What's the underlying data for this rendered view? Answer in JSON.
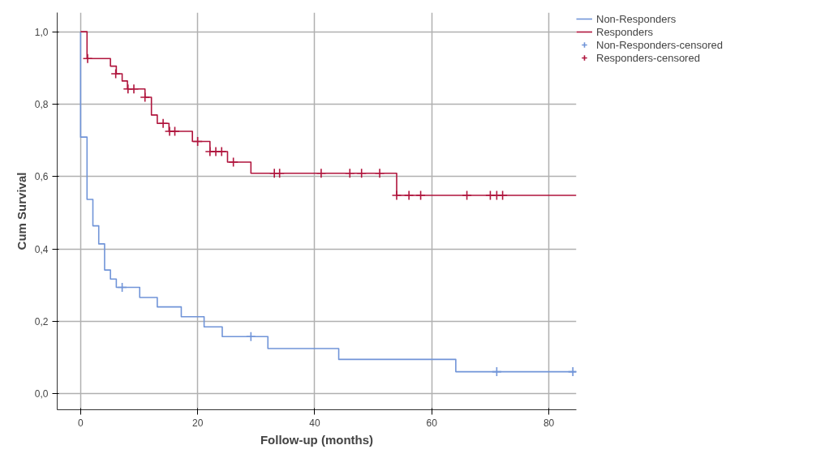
{
  "chart_data": {
    "type": "step",
    "xlabel": "Follow-up (months)",
    "ylabel": "Cum Survival",
    "xlim": [
      -4,
      84.7
    ],
    "ylim": [
      -0.044,
      1.053
    ],
    "xticks": [
      0,
      20,
      40,
      60,
      80
    ],
    "yticks": [
      {
        "value": 0,
        "label": "0,0"
      },
      {
        "value": 0.2,
        "label": "0,2"
      },
      {
        "value": 0.4,
        "label": "0,4"
      },
      {
        "value": 0.6,
        "label": "0,6"
      },
      {
        "value": 0.8,
        "label": "0,8"
      },
      {
        "value": 1.0,
        "label": "1,0"
      }
    ],
    "grid": true,
    "legend": "top right",
    "series": [
      {
        "name": "Non-Responders",
        "color": "#7094d8",
        "x": [
          0,
          0,
          1.1,
          2.1,
          3.1,
          4.1,
          5.1,
          6.1,
          10.1,
          13.1,
          17.2,
          21.1,
          24.2,
          32.0,
          44.1,
          64.1,
          84.7
        ],
        "values": [
          1.0,
          0.709,
          0.537,
          0.464,
          0.414,
          0.342,
          0.317,
          0.294,
          0.266,
          0.24,
          0.213,
          0.185,
          0.158,
          0.125,
          0.095,
          0.061,
          0.061
        ]
      },
      {
        "name": "Responders",
        "color": "#b0153d",
        "x": [
          0,
          1.1,
          5.1,
          6.1,
          7.1,
          8.0,
          11.0,
          12.1,
          13.1,
          15.1,
          19.1,
          22.1,
          25.1,
          29.1,
          54.0,
          84.7
        ],
        "values": [
          1.0,
          0.926,
          0.905,
          0.884,
          0.864,
          0.842,
          0.819,
          0.77,
          0.747,
          0.725,
          0.697,
          0.669,
          0.64,
          0.609,
          0.548,
          0.548
        ]
      },
      {
        "name": "Non-Responders-censored",
        "type": "scatter",
        "marker": "cross",
        "color": "#7094d8",
        "x": [
          7.1,
          29.1,
          71.1,
          84.1
        ],
        "values": [
          0.294,
          0.158,
          0.061,
          0.061
        ]
      },
      {
        "name": "Responders-censored",
        "type": "scatter",
        "marker": "cross",
        "color": "#b0153d",
        "x": [
          1.2,
          6.0,
          8.1,
          9.1,
          11.0,
          14.1,
          15.2,
          16.1,
          20.0,
          22.1,
          23.1,
          24.1,
          26.1,
          33.1,
          34.0,
          41.1,
          46.0,
          48.0,
          51.1,
          54.0,
          56.1,
          58.1,
          66.0,
          70.0,
          71.1,
          72.1
        ],
        "values": [
          0.926,
          0.884,
          0.842,
          0.842,
          0.819,
          0.747,
          0.725,
          0.725,
          0.697,
          0.669,
          0.669,
          0.669,
          0.64,
          0.609,
          0.609,
          0.609,
          0.609,
          0.609,
          0.609,
          0.548,
          0.548,
          0.548,
          0.548,
          0.548,
          0.548,
          0.548
        ]
      }
    ]
  }
}
